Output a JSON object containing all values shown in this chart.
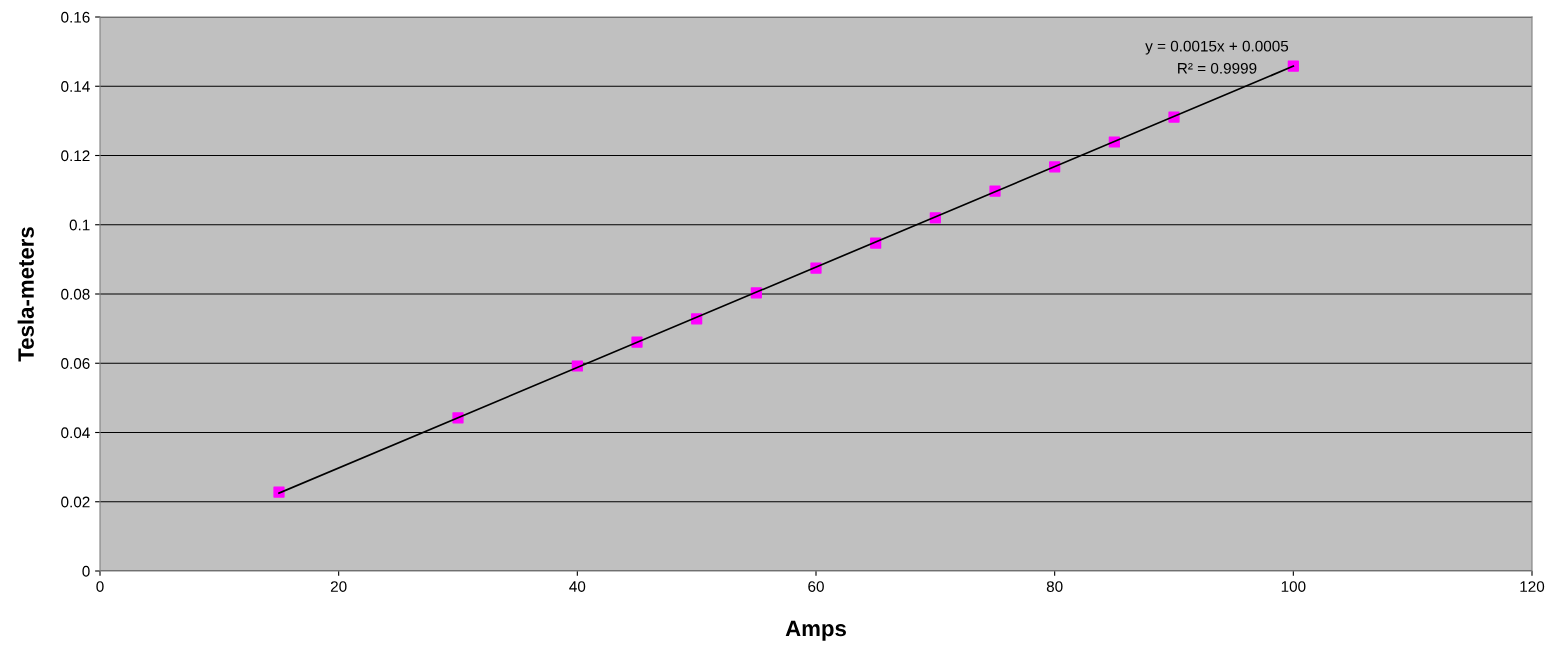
{
  "chart_data": {
    "type": "scatter",
    "xlabel": "Amps",
    "ylabel": "Tesla-meters",
    "series": [
      {
        "marker": "square",
        "color": "#ff00ff",
        "x": [
          15,
          30,
          40,
          45,
          50,
          55,
          60,
          65,
          70,
          75,
          80,
          85,
          90,
          100
        ],
        "values": [
          0.0228,
          0.0442,
          0.0592,
          0.0661,
          0.0728,
          0.0803,
          0.0875,
          0.0947,
          0.102,
          0.1097,
          0.1167,
          0.1239,
          0.1311,
          0.1458
        ]
      },
      {
        "type": "line",
        "marker": "none",
        "color": "#000000",
        "x": [
          15,
          100
        ],
        "values": [
          0.0225,
          0.1458
        ]
      }
    ],
    "annotations": [
      "y = 0.0015x + 0.0005",
      "R² = 0.9999"
    ],
    "xlim": [
      0,
      120
    ],
    "xticks": [
      0,
      20,
      40,
      60,
      80,
      100,
      120
    ],
    "ylim": [
      0,
      0.16
    ],
    "yticks": [
      0,
      0.02,
      0.04,
      0.06,
      0.08,
      0.1,
      0.12,
      0.14,
      0.16
    ],
    "grid": "y",
    "line_style": "solid",
    "legend": false
  }
}
